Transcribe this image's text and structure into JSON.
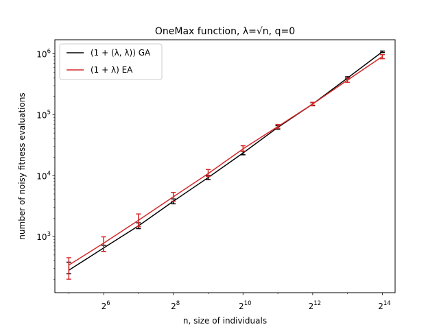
{
  "chart_data": {
    "type": "line",
    "title": "OneMax function, λ=√n, q=0",
    "xlabel": "n, size of individuals",
    "ylabel": "number of noisy fitness evaluations",
    "x_scale": "log2",
    "y_scale": "log10",
    "xlim": [
      24.25,
      21104
    ],
    "ylim": [
      120,
      1700000
    ],
    "x_ticks": [
      {
        "value": 64,
        "base": "2",
        "exp": "6"
      },
      {
        "value": 256,
        "base": "2",
        "exp": "8"
      },
      {
        "value": 1024,
        "base": "2",
        "exp": "10"
      },
      {
        "value": 4096,
        "base": "2",
        "exp": "12"
      },
      {
        "value": 16384,
        "base": "2",
        "exp": "14"
      }
    ],
    "y_ticks": [
      {
        "value": 1000,
        "base": "10",
        "exp": "3"
      },
      {
        "value": 10000,
        "base": "10",
        "exp": "4"
      },
      {
        "value": 100000,
        "base": "10",
        "exp": "5"
      },
      {
        "value": 1000000,
        "base": "10",
        "exp": "6"
      }
    ],
    "grid": false,
    "legend_position": "top-left",
    "series": [
      {
        "name": "(1 + (λ, λ)) GA",
        "color": "#000000",
        "x": [
          32,
          64,
          128,
          256,
          512,
          1024,
          2048,
          4096,
          8192,
          16384
        ],
        "y": [
          280,
          650,
          1500,
          3800,
          9300,
          23500,
          62000,
          150000,
          400000,
          1080000
        ],
        "err_low": [
          245,
          570,
          1350,
          3450,
          8600,
          22000,
          58000,
          143000,
          385000,
          1050000
        ],
        "err_high": [
          380,
          720,
          1680,
          4150,
          10000,
          25200,
          66000,
          158000,
          420000,
          1110000
        ]
      },
      {
        "name": "(1 + λ) EA",
        "color": "#d62728",
        "x": [
          32,
          64,
          128,
          256,
          512,
          1024,
          2048,
          4096,
          8192,
          16384
        ],
        "y": [
          340,
          780,
          1850,
          4500,
          10800,
          27500,
          64000,
          150000,
          370000,
          900000
        ],
        "err_low": [
          200,
          570,
          1450,
          3800,
          9700,
          25000,
          60000,
          140000,
          340000,
          830000
        ],
        "err_high": [
          450,
          990,
          2350,
          5300,
          12600,
          31000,
          69000,
          160000,
          400000,
          970000
        ]
      }
    ]
  }
}
